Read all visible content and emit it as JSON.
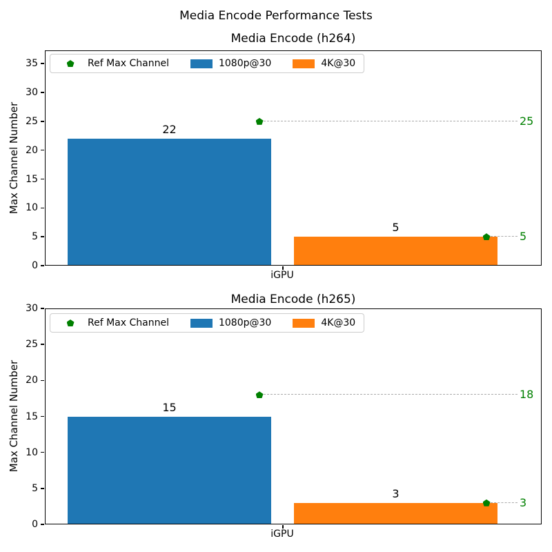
{
  "figure": {
    "suptitle": "Media Encode Performance Tests"
  },
  "colors": {
    "bar_1080p": "#1f77b4",
    "bar_4k": "#ff7f0e",
    "ref_marker_green": "#008000",
    "ref_dash_gray": "#a9a9a9"
  },
  "chart_data": [
    {
      "type": "bar",
      "title": "Media Encode (h264)",
      "xlabel": "",
      "ylabel": "Max Channel Number",
      "categories": [
        "iGPU"
      ],
      "series": [
        {
          "name": "1080p@30",
          "values": [
            22
          ],
          "color": "#1f77b4"
        },
        {
          "name": "4K@30",
          "values": [
            5
          ],
          "color": "#ff7f0e"
        }
      ],
      "ref_series": {
        "name": "Ref Max Channel",
        "values": [
          25,
          5
        ],
        "color": "#008000",
        "marker": "pentagon",
        "line_style": "dashed"
      },
      "bar_labels": [
        22,
        5
      ],
      "ref_labels": [
        25,
        5
      ],
      "ylim": [
        0,
        37.3
      ],
      "yticks": [
        0,
        5,
        10,
        15,
        20,
        25,
        30,
        35
      ],
      "grid": false,
      "legend_position": "upper left"
    },
    {
      "type": "bar",
      "title": "Media Encode (h265)",
      "xlabel": "",
      "ylabel": "Max Channel Number",
      "categories": [
        "iGPU"
      ],
      "series": [
        {
          "name": "1080p@30",
          "values": [
            15
          ],
          "color": "#1f77b4"
        },
        {
          "name": "4K@30",
          "values": [
            3
          ],
          "color": "#ff7f0e"
        }
      ],
      "ref_series": {
        "name": "Ref Max Channel",
        "values": [
          18,
          3
        ],
        "color": "#008000",
        "marker": "pentagon",
        "line_style": "dashed"
      },
      "bar_labels": [
        15,
        3
      ],
      "ref_labels": [
        18,
        3
      ],
      "ylim": [
        0,
        30
      ],
      "yticks": [
        0,
        5,
        10,
        15,
        20,
        25,
        30
      ],
      "grid": false,
      "legend_position": "upper left"
    }
  ]
}
